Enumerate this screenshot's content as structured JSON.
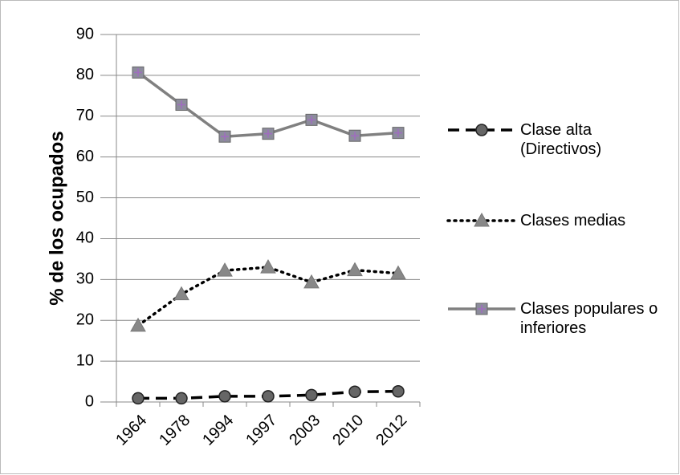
{
  "chart_data": {
    "type": "line",
    "y_label": "% de los ocupados",
    "categories": [
      "1964",
      "1978",
      "1994",
      "1997",
      "2003",
      "2010",
      "2012"
    ],
    "series": [
      {
        "name": "Clase alta (Directivos)",
        "color": "#000000",
        "marker": "circle",
        "line_style": "dashed",
        "values": [
          0.9,
          0.9,
          1.4,
          1.4,
          1.7,
          2.5,
          2.6
        ]
      },
      {
        "name": "Clases medias",
        "color": "#000000",
        "marker": "triangle",
        "line_style": "dotted",
        "values": [
          18.7,
          26.4,
          32.2,
          33.0,
          29.3,
          32.3,
          31.5
        ]
      },
      {
        "name": "Clases populares o inferiores",
        "color": "#808080",
        "marker": "square",
        "line_style": "solid",
        "values": [
          80.7,
          72.8,
          65.0,
          65.7,
          69.1,
          65.2,
          65.9
        ]
      }
    ],
    "ylim": [
      0,
      90
    ],
    "yticks": [
      0,
      10,
      20,
      30,
      40,
      50,
      60,
      70,
      80,
      90
    ],
    "grid": true,
    "legend": "right"
  }
}
